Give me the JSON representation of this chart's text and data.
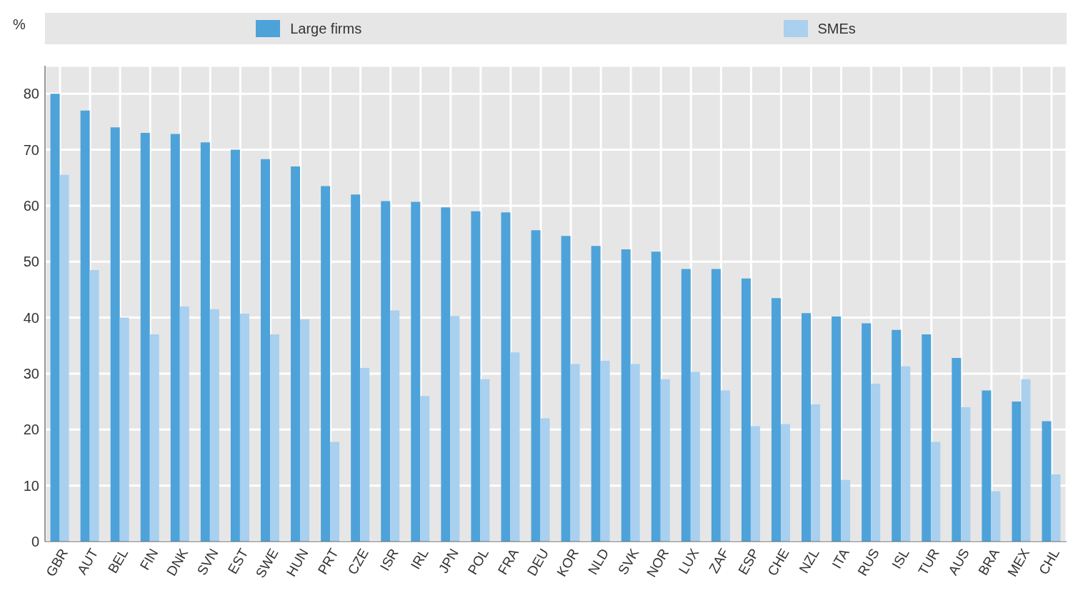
{
  "chart_data": {
    "type": "bar",
    "ylabel": "%",
    "categories": [
      "GBR",
      "AUT",
      "BEL",
      "FIN",
      "DNK",
      "SVN",
      "EST",
      "SWE",
      "HUN",
      "PRT",
      "CZE",
      "ISR",
      "IRL",
      "JPN",
      "POL",
      "FRA",
      "DEU",
      "KOR",
      "NLD",
      "SVK",
      "NOR",
      "LUX",
      "ZAF",
      "ESP",
      "CHE",
      "NZL",
      "ITA",
      "RUS",
      "ISL",
      "TUR",
      "AUS",
      "BRA",
      "MEX",
      "CHL"
    ],
    "series": [
      {
        "name": "Large firms",
        "color": "#4da3d9",
        "values": [
          80,
          77,
          74,
          73,
          72.8,
          71.3,
          70,
          68.3,
          67,
          63.5,
          62,
          60.8,
          60.7,
          59.7,
          59,
          58.8,
          55.6,
          54.6,
          52.8,
          52.2,
          51.8,
          48.7,
          48.7,
          47,
          43.5,
          40.8,
          40.2,
          39,
          37.8,
          37,
          32.8,
          27,
          25,
          21.5
        ]
      },
      {
        "name": "SMEs",
        "color": "#a9d0ef",
        "values": [
          65.5,
          48.5,
          40,
          37,
          42,
          41.5,
          40.7,
          37,
          39.7,
          17.8,
          31,
          41.3,
          26,
          40.3,
          29,
          33.8,
          22,
          31.7,
          32.3,
          31.7,
          29,
          30.3,
          27,
          20.6,
          21,
          24.5,
          11,
          28.2,
          31.3,
          17.8,
          24,
          9,
          29,
          12
        ]
      }
    ],
    "ylim": [
      0,
      85
    ],
    "yticks": [
      0,
      10,
      20,
      30,
      40,
      50,
      60,
      70,
      80
    ],
    "grid": true,
    "legend": "top"
  }
}
